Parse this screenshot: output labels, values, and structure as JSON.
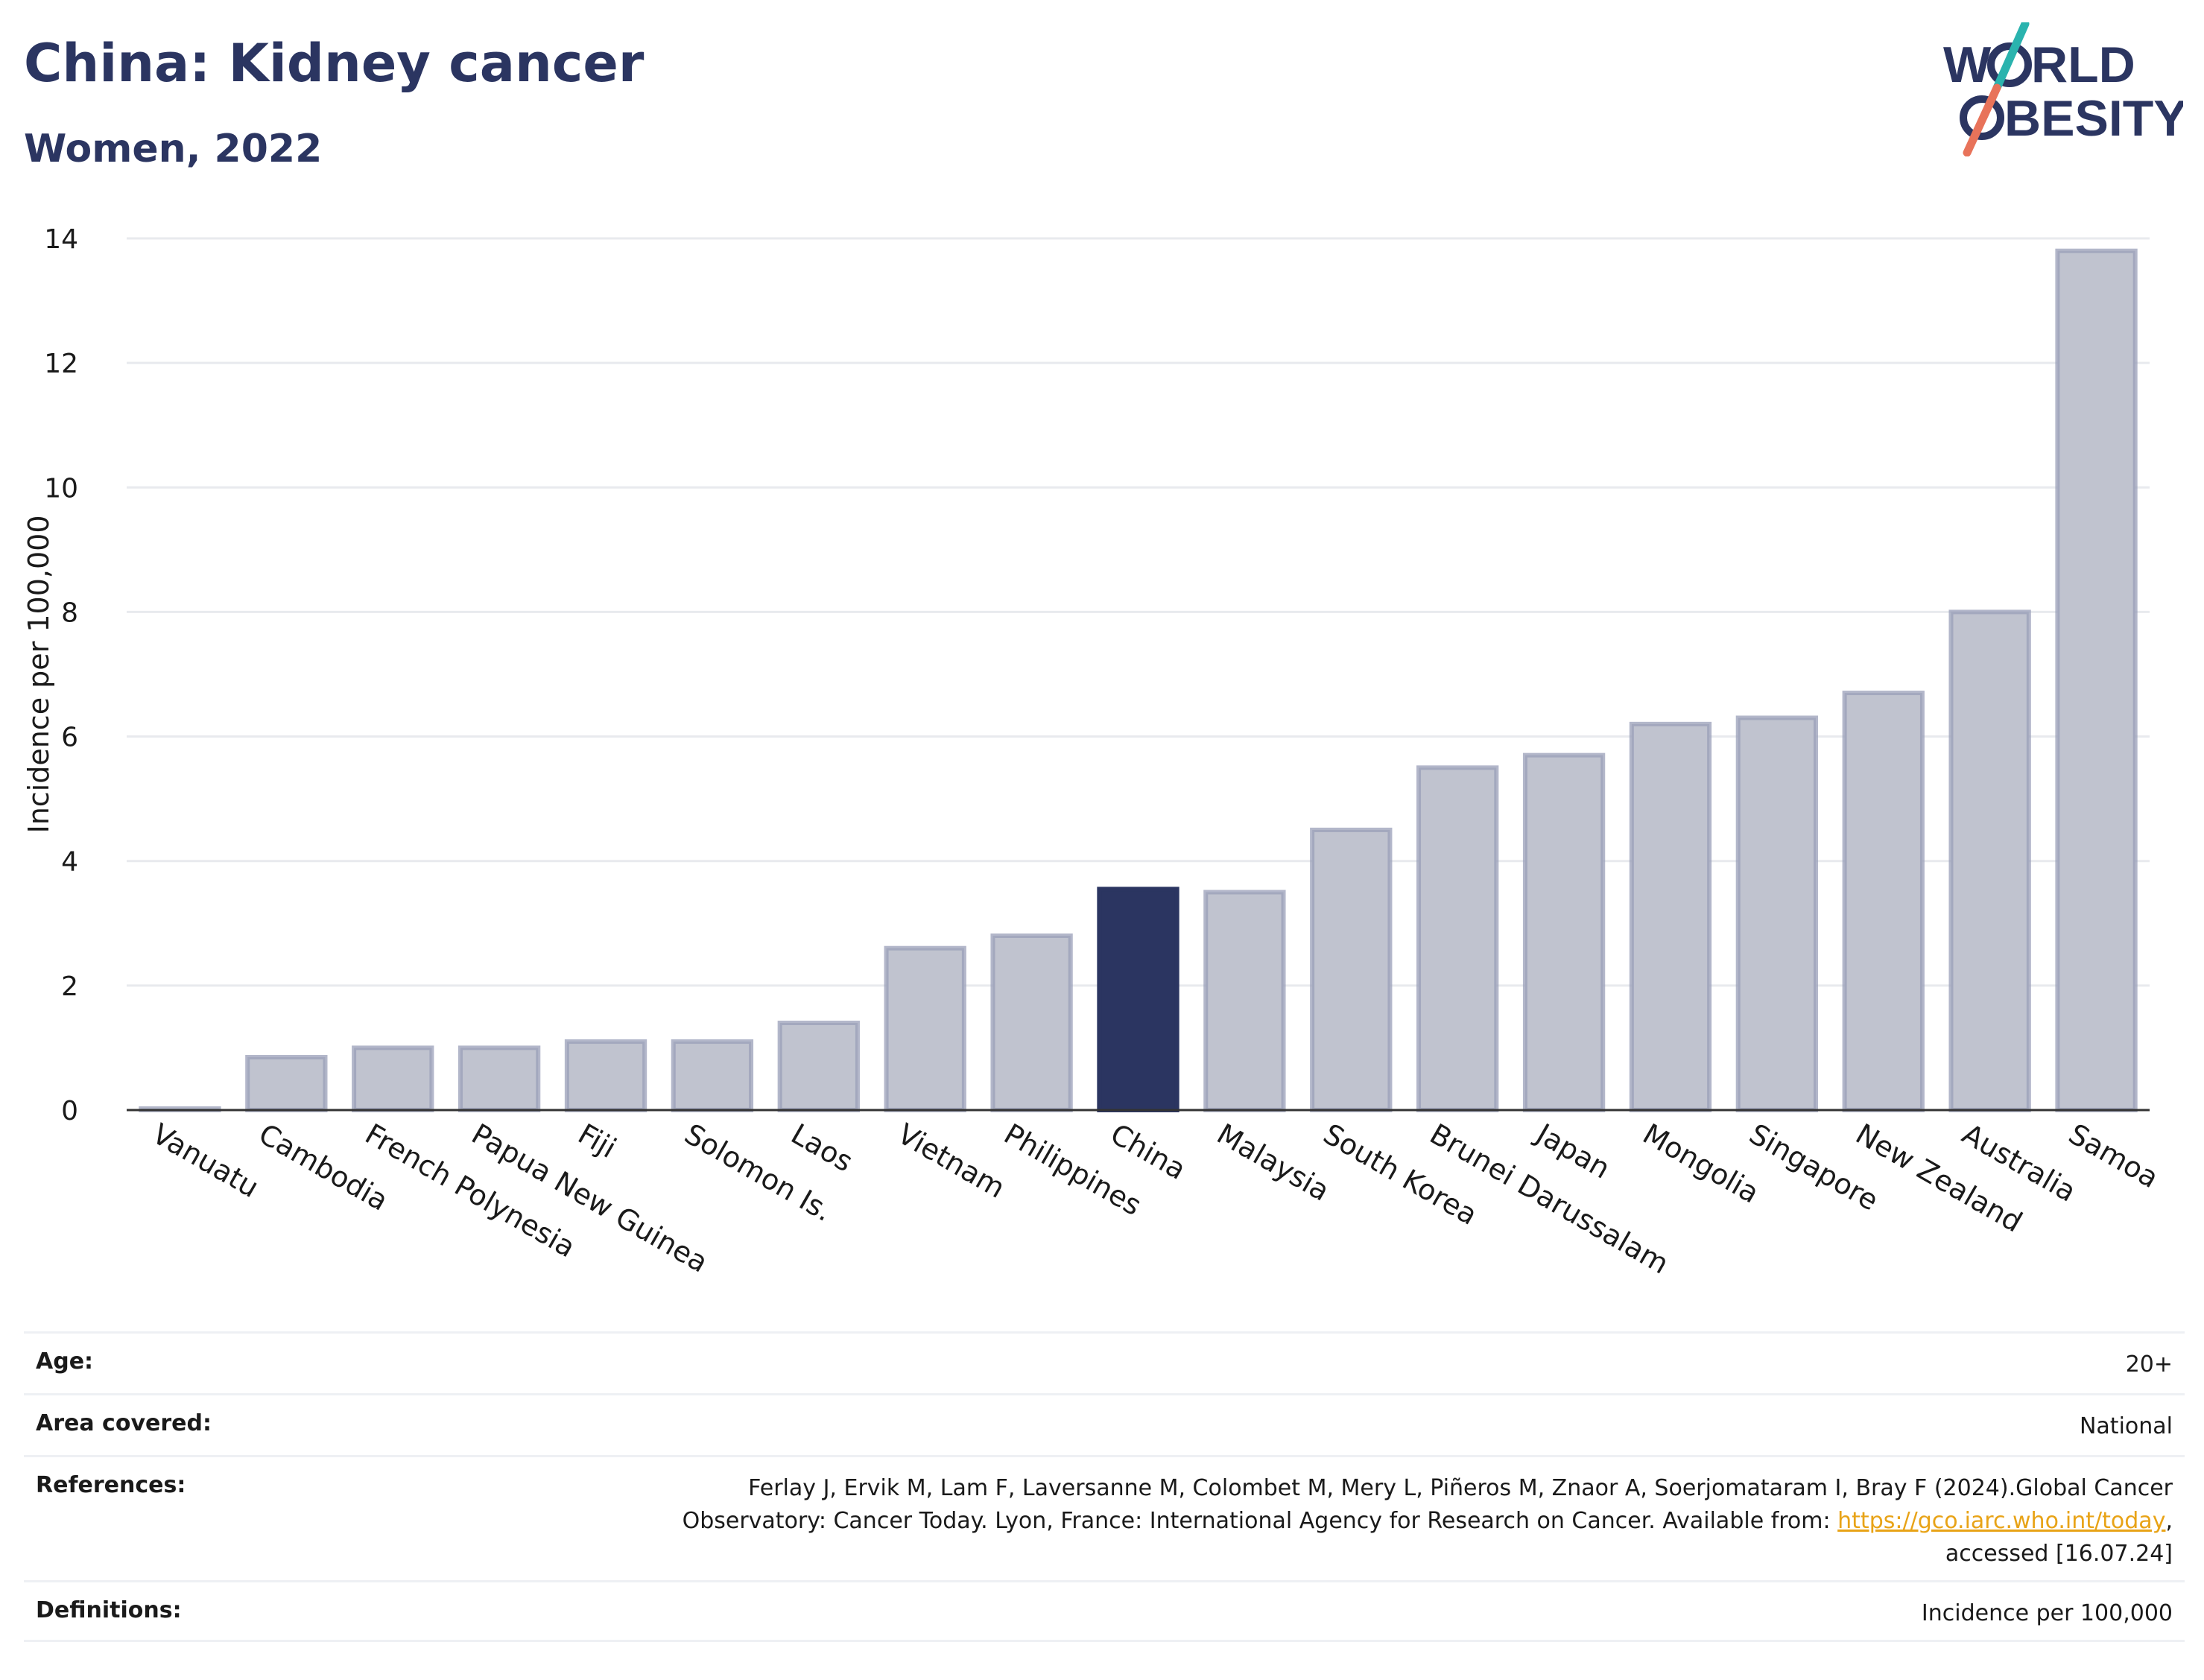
{
  "header": {
    "title": "China: Kidney cancer",
    "subtitle": "Women, 2022"
  },
  "logo": {
    "line1": "W",
    "line1_rest": "RLD",
    "line2_rest": "BESITY",
    "slash_colors": [
      "#2ab3ae",
      "#e8735a"
    ],
    "text_color": "#2b3561"
  },
  "chart_data": {
    "type": "bar",
    "ylabel": "Incidence per 100,000",
    "xlabel": "",
    "ylim": [
      0,
      14
    ],
    "yticks": [
      0,
      2,
      4,
      6,
      8,
      10,
      12,
      14
    ],
    "grid": true,
    "highlight": "China",
    "colors": {
      "bar": "#c0c3cf",
      "bar_border": "#9a9fb8",
      "highlight": "#2b3561"
    },
    "categories": [
      "Vanuatu",
      "Cambodia",
      "French Polynesia",
      "Papua New Guinea",
      "Fiji",
      "Solomon Is.",
      "Laos",
      "Vietnam",
      "Philippines",
      "China",
      "Malaysia",
      "South Korea",
      "Brunei Darussalam",
      "Japan",
      "Mongolia",
      "Singapore",
      "New Zealand",
      "Australia",
      "Samoa"
    ],
    "values": [
      0.02,
      0.85,
      1.0,
      1.0,
      1.1,
      1.1,
      1.4,
      2.6,
      2.8,
      3.55,
      3.5,
      4.5,
      5.5,
      5.7,
      6.2,
      6.3,
      6.7,
      8.0,
      13.8
    ]
  },
  "meta": {
    "age_label": "Age:",
    "age_value": "20+",
    "area_label": "Area covered:",
    "area_value": "National",
    "references_label": "References:",
    "references_line1": "Ferlay J, Ervik M, Lam F, Laversanne M, Colombet M, Mery L, Piñeros M, Znaor A, Soerjomataram I, Bray F (2024).Global Cancer",
    "references_line2_pre": "Observatory: Cancer Today. Lyon, France: International Agency for Research on Cancer. Available from: ",
    "references_link": "https://gco.iarc.who.int/today",
    "references_line2_post": ",",
    "references_line3": "accessed [16.07.24]",
    "definitions_label": "Definitions:",
    "definitions_value": "Incidence per 100,000"
  }
}
